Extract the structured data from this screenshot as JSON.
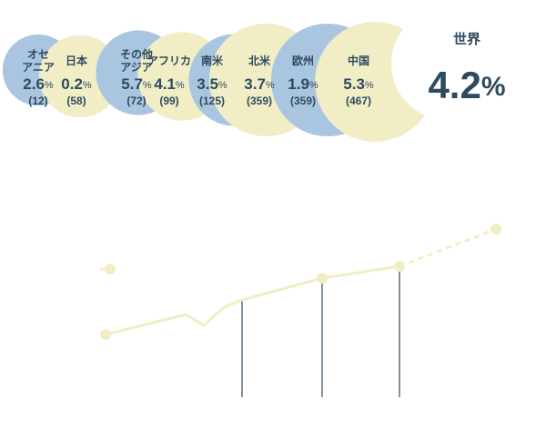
{
  "world": {
    "label": "世界",
    "value": 4.2,
    "unit": "%"
  },
  "regions": [
    {
      "name": [
        "オセ",
        "アニア"
      ],
      "value": 2.6,
      "count": 12,
      "count_label": "(12)"
    },
    {
      "name": [
        "日本"
      ],
      "value": 0.2,
      "count": 58,
      "count_label": "(58)"
    },
    {
      "name": [
        "その他",
        "アジア"
      ],
      "value": 5.7,
      "count": 72,
      "count_label": "(72)"
    },
    {
      "name": [
        "アフリカ"
      ],
      "value": 4.1,
      "count": 99,
      "count_label": "(99)"
    },
    {
      "name": [
        "南米"
      ],
      "value": 3.5,
      "count": 125,
      "count_label": "(125)"
    },
    {
      "name": [
        "北米"
      ],
      "value": 3.7,
      "count": 359,
      "count_label": "(359)"
    },
    {
      "name": [
        "欧州"
      ],
      "value": 1.9,
      "count": 359,
      "count_label": "(359)"
    },
    {
      "name": [
        "中国"
      ],
      "value": 5.3,
      "count": 467,
      "count_label": "(467)"
    }
  ],
  "colors": [
    "#a9c5e0",
    "#f1eec6"
  ],
  "chart_data": {
    "type": "line",
    "xlim": [
      0,
      460
    ],
    "ylim": [
      0,
      200
    ],
    "color": "#f1eec6",
    "series": [
      {
        "x": [
          16,
          104,
          124,
          146,
          166,
          254,
          339
        ],
        "values": [
          69,
          91,
          79,
          99,
          107,
          131,
          144
        ],
        "style": "solid"
      },
      {
        "x": [
          339,
          445
        ],
        "values": [
          144,
          185
        ],
        "style": "dashed"
      },
      {
        "x": [
          10,
          21
        ],
        "values": [
          141,
          141
        ],
        "style": "dashed"
      }
    ],
    "markers": {
      "x": [
        16,
        21,
        254,
        339,
        445
      ],
      "values": [
        69,
        141,
        131,
        144,
        185
      ]
    },
    "drops": {
      "x": [
        166,
        254,
        339
      ],
      "values": [
        107,
        131,
        144
      ],
      "color": "#2e4a5f"
    }
  }
}
